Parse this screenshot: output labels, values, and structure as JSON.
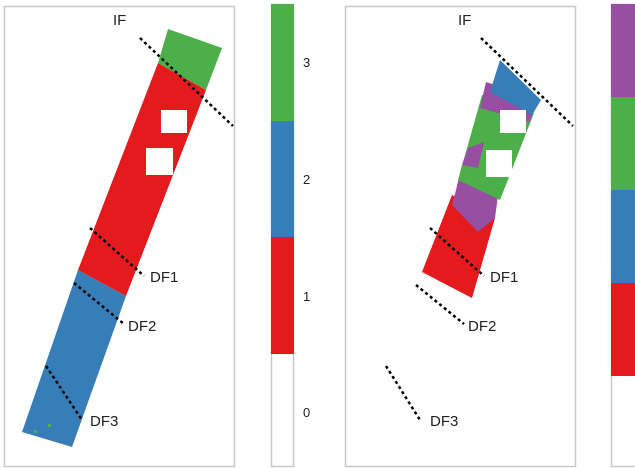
{
  "colors": {
    "red": "#e41a1c",
    "blue": "#377eb8",
    "green": "#4daf4a",
    "purple": "#984ea3",
    "frame": "#c8c8c8"
  },
  "left_panel": {
    "labels": {
      "if": "IF",
      "df1": "DF1",
      "df2": "DF2",
      "df3": "DF3"
    }
  },
  "right_panel": {
    "labels": {
      "if": "IF",
      "df1": "DF1",
      "df2": "DF2",
      "df3": "DF3"
    }
  },
  "colorbar": {
    "ticks": [
      "0",
      "1",
      "2",
      "3"
    ],
    "segments": [
      "empty",
      "red",
      "blue",
      "green"
    ]
  },
  "colorbar_right": {
    "segments": [
      "empty",
      "red",
      "blue",
      "green",
      "purple"
    ]
  }
}
